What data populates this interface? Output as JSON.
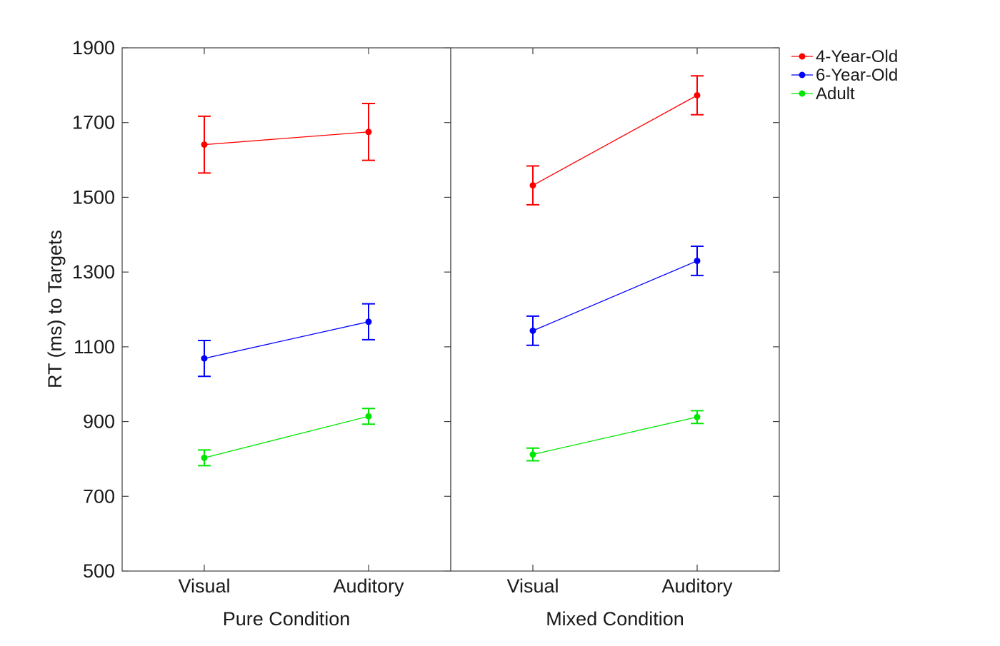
{
  "chart_data": {
    "type": "line",
    "ylabel": "RT (ms) to Targets",
    "ylim": [
      500,
      1900
    ],
    "yticks": [
      "500",
      "700",
      "900",
      "1100",
      "1300",
      "1500",
      "1700",
      "1900"
    ],
    "panels": [
      {
        "xlabel": "Pure Condition",
        "categories": [
          "Visual",
          "Auditory"
        ],
        "series": [
          {
            "name": "4-Year-Old",
            "color": "#ff0000",
            "values": [
              1641,
              1675
            ],
            "errors": [
              76,
              76
            ]
          },
          {
            "name": "6-Year-Old",
            "color": "#0000ff",
            "values": [
              1069,
              1167
            ],
            "errors": [
              48,
              48
            ]
          },
          {
            "name": "Adult",
            "color": "#00e600",
            "values": [
              803,
              914
            ],
            "errors": [
              21,
              21
            ]
          }
        ]
      },
      {
        "xlabel": "Mixed Condition",
        "categories": [
          "Visual",
          "Auditory"
        ],
        "series": [
          {
            "name": "4-Year-Old",
            "color": "#ff0000",
            "values": [
              1532,
              1773
            ],
            "errors": [
              52,
              52
            ]
          },
          {
            "name": "6-Year-Old",
            "color": "#0000ff",
            "values": [
              1143,
              1330
            ],
            "errors": [
              39,
              39
            ]
          },
          {
            "name": "Adult",
            "color": "#00e600",
            "values": [
              812,
              912
            ],
            "errors": [
              17,
              17
            ]
          }
        ]
      }
    ],
    "legend": {
      "placement": "top-right, outside",
      "entries": [
        {
          "name": "4-Year-Old",
          "color": "#ff0000"
        },
        {
          "name": "6-Year-Old",
          "color": "#0000ff"
        },
        {
          "name": "Adult",
          "color": "#00e600"
        }
      ]
    },
    "grid": false
  }
}
